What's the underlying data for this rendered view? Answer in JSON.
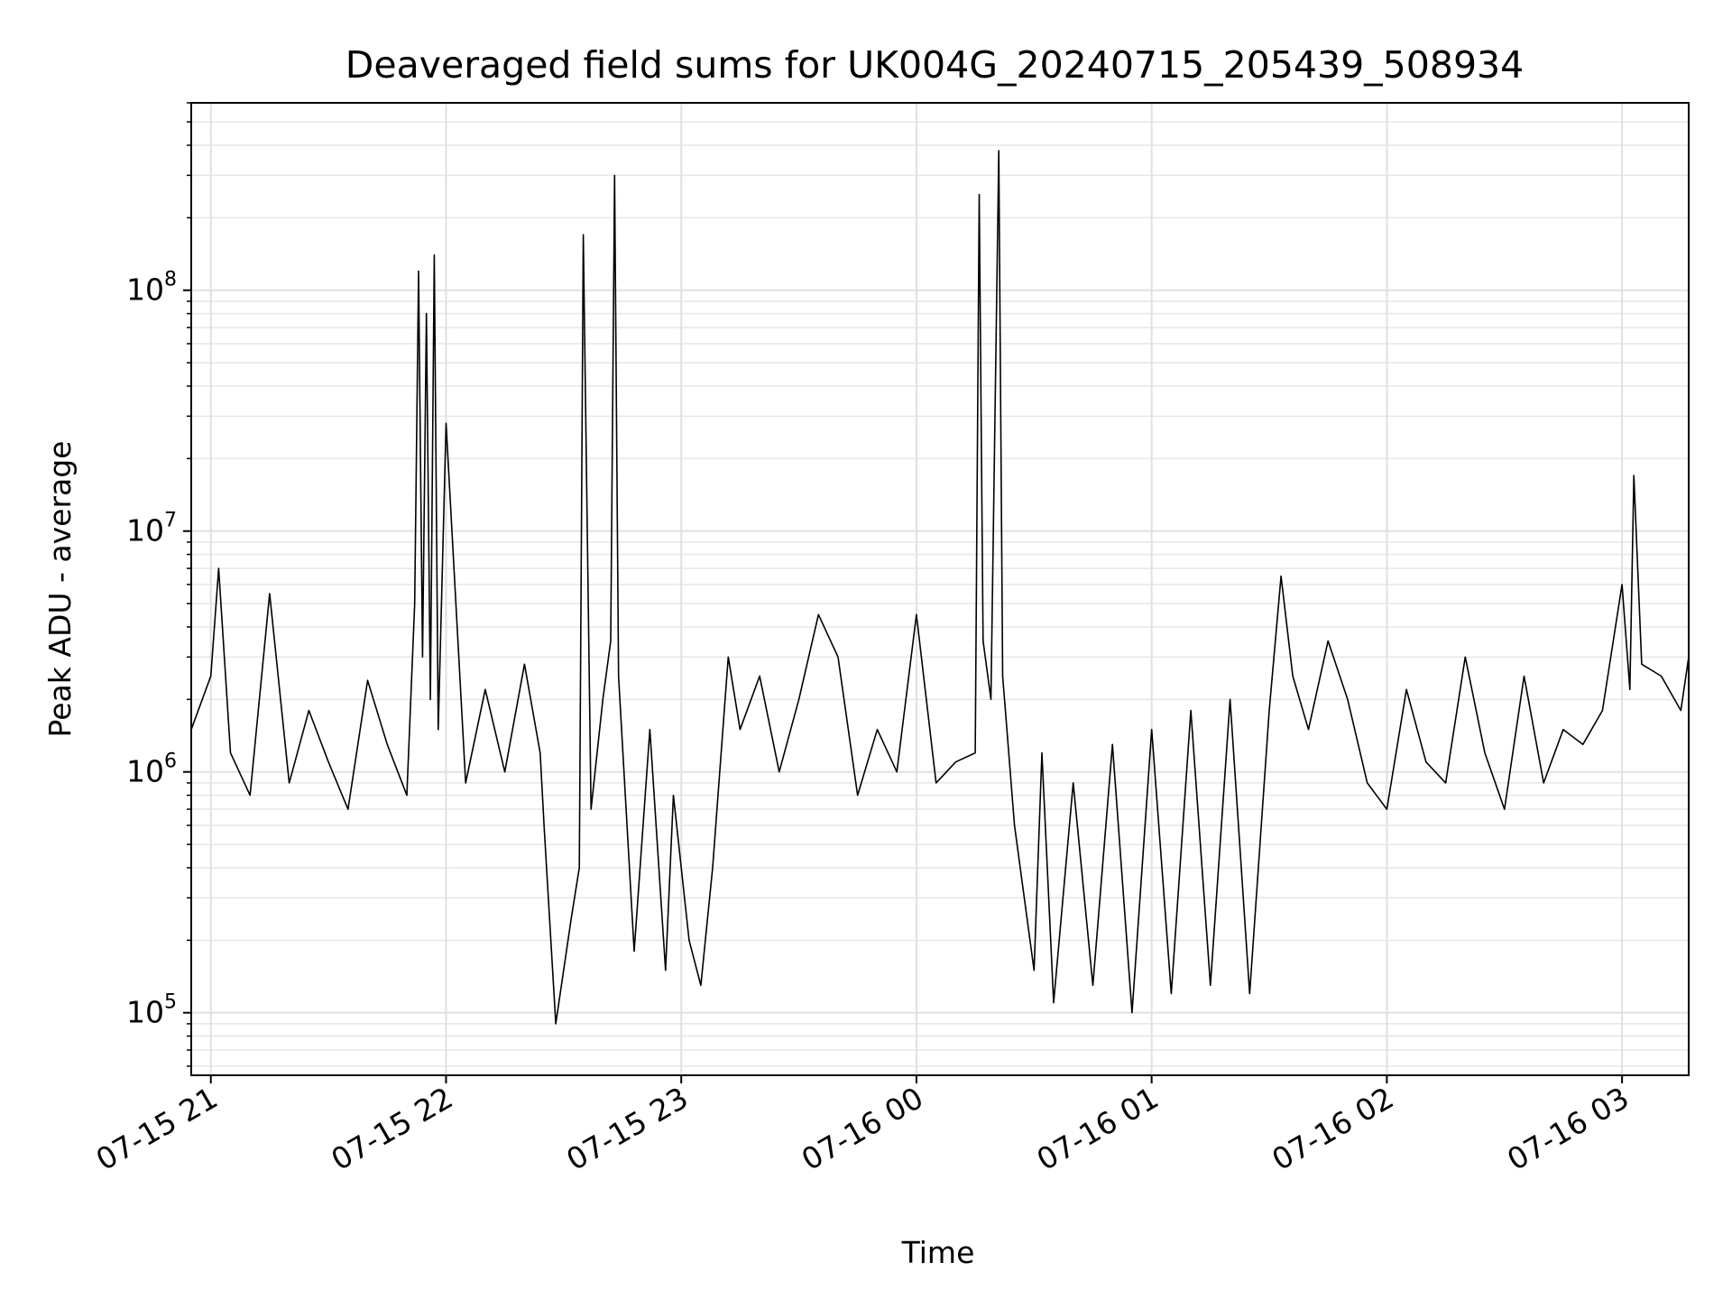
{
  "chart_data": {
    "type": "line",
    "title": "Deaveraged field sums for UK004G_20240715_205439_508934",
    "xlabel": "Time",
    "ylabel": "Peak ADU - average",
    "x_range": [
      "2024-07-15 20:55",
      "2024-07-16 03:17"
    ],
    "ylim": [
      55000,
      600000000
    ],
    "yscale": "log",
    "grid": true,
    "line_color": "#000000",
    "x_ticks": [
      {
        "label": "07-15 21",
        "time": "2024-07-15 21:00"
      },
      {
        "label": "07-15 22",
        "time": "2024-07-15 22:00"
      },
      {
        "label": "07-15 23",
        "time": "2024-07-15 23:00"
      },
      {
        "label": "07-16 00",
        "time": "2024-07-16 00:00"
      },
      {
        "label": "07-16 01",
        "time": "2024-07-16 01:00"
      },
      {
        "label": "07-16 02",
        "time": "2024-07-16 02:00"
      },
      {
        "label": "07-16 03",
        "time": "2024-07-16 03:00"
      }
    ],
    "y_ticks": [
      {
        "value": 100000,
        "base": "10",
        "exp": "5"
      },
      {
        "value": 1000000,
        "base": "10",
        "exp": "6"
      },
      {
        "value": 10000000,
        "base": "10",
        "exp": "7"
      },
      {
        "value": 100000000,
        "base": "10",
        "exp": "8"
      }
    ],
    "series": [
      {
        "x": [
          "2024-07-15 20:55",
          "2024-07-15 21:00",
          "2024-07-15 21:02",
          "2024-07-15 21:05",
          "2024-07-15 21:10",
          "2024-07-15 21:15",
          "2024-07-15 21:20",
          "2024-07-15 21:25",
          "2024-07-15 21:30",
          "2024-07-15 21:35",
          "2024-07-15 21:40",
          "2024-07-15 21:45",
          "2024-07-15 21:50",
          "2024-07-15 21:52",
          "2024-07-15 21:53",
          "2024-07-15 21:54",
          "2024-07-15 21:55",
          "2024-07-15 21:56",
          "2024-07-15 21:57",
          "2024-07-15 21:58",
          "2024-07-15 22:00",
          "2024-07-15 22:05",
          "2024-07-15 22:10",
          "2024-07-15 22:15",
          "2024-07-15 22:20",
          "2024-07-15 22:24",
          "2024-07-15 22:25",
          "2024-07-15 22:28",
          "2024-07-15 22:32",
          "2024-07-15 22:34",
          "2024-07-15 22:35",
          "2024-07-15 22:37",
          "2024-07-15 22:40",
          "2024-07-15 22:42",
          "2024-07-15 22:43",
          "2024-07-15 22:44",
          "2024-07-15 22:48",
          "2024-07-15 22:52",
          "2024-07-15 22:56",
          "2024-07-15 22:58",
          "2024-07-15 23:02",
          "2024-07-15 23:05",
          "2024-07-15 23:08",
          "2024-07-15 23:12",
          "2024-07-15 23:15",
          "2024-07-15 23:20",
          "2024-07-15 23:25",
          "2024-07-15 23:30",
          "2024-07-15 23:35",
          "2024-07-15 23:40",
          "2024-07-15 23:45",
          "2024-07-15 23:50",
          "2024-07-15 23:55",
          "2024-07-16 00:00",
          "2024-07-16 00:05",
          "2024-07-16 00:10",
          "2024-07-16 00:15",
          "2024-07-16 00:16",
          "2024-07-16 00:17",
          "2024-07-16 00:19",
          "2024-07-16 00:21",
          "2024-07-16 00:22",
          "2024-07-16 00:25",
          "2024-07-16 00:30",
          "2024-07-16 00:32",
          "2024-07-16 00:35",
          "2024-07-16 00:40",
          "2024-07-16 00:45",
          "2024-07-16 00:50",
          "2024-07-16 00:55",
          "2024-07-16 01:00",
          "2024-07-16 01:05",
          "2024-07-16 01:10",
          "2024-07-16 01:15",
          "2024-07-16 01:20",
          "2024-07-16 01:25",
          "2024-07-16 01:30",
          "2024-07-16 01:33",
          "2024-07-16 01:36",
          "2024-07-16 01:40",
          "2024-07-16 01:45",
          "2024-07-16 01:50",
          "2024-07-16 01:55",
          "2024-07-16 02:00",
          "2024-07-16 02:05",
          "2024-07-16 02:10",
          "2024-07-16 02:15",
          "2024-07-16 02:20",
          "2024-07-16 02:25",
          "2024-07-16 02:30",
          "2024-07-16 02:35",
          "2024-07-16 02:40",
          "2024-07-16 02:45",
          "2024-07-16 02:50",
          "2024-07-16 02:55",
          "2024-07-16 03:00",
          "2024-07-16 03:02",
          "2024-07-16 03:03",
          "2024-07-16 03:05",
          "2024-07-16 03:10",
          "2024-07-16 03:15",
          "2024-07-16 03:17"
        ],
        "y": [
          1500000,
          2500000,
          7000000,
          1200000,
          800000,
          5500000,
          900000,
          1800000,
          1100000,
          700000,
          2400000,
          1300000,
          800000,
          5000000,
          120000000,
          3000000,
          80000000,
          2000000,
          140000000,
          1500000,
          28000000,
          900000,
          2200000,
          1000000,
          2800000,
          1200000,
          600000,
          90000,
          250000,
          400000,
          170000000,
          700000,
          2000000,
          3500000,
          300000000,
          2500000,
          180000,
          1500000,
          150000,
          800000,
          200000,
          130000,
          400000,
          3000000,
          1500000,
          2500000,
          1000000,
          2000000,
          4500000,
          3000000,
          800000,
          1500000,
          1000000,
          4500000,
          900000,
          1100000,
          1200000,
          250000000,
          3500000,
          2000000,
          380000000,
          2500000,
          600000,
          150000,
          1200000,
          110000,
          900000,
          130000,
          1300000,
          100000,
          1500000,
          120000,
          1800000,
          130000,
          2000000,
          120000,
          1800000,
          6500000,
          2500000,
          1500000,
          3500000,
          2000000,
          900000,
          700000,
          2200000,
          1100000,
          900000,
          3000000,
          1200000,
          700000,
          2500000,
          900000,
          1500000,
          1300000,
          1800000,
          6000000,
          2200000,
          17000000,
          2800000,
          2500000,
          1800000,
          3000000
        ]
      }
    ]
  }
}
